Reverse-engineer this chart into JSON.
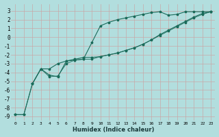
{
  "xlabel": "Humidex (Indice chaleur)",
  "background_color": "#b2dede",
  "grid_color": "#c8a8a8",
  "line_color": "#1a6b5a",
  "xlim": [
    -0.5,
    23.5
  ],
  "ylim": [
    -9.5,
    3.8
  ],
  "yticks": [
    3,
    2,
    1,
    0,
    -1,
    -2,
    -3,
    -4,
    -5,
    -6,
    -7,
    -8,
    -9
  ],
  "xticks": [
    0,
    1,
    2,
    3,
    4,
    5,
    6,
    7,
    8,
    9,
    10,
    11,
    12,
    13,
    14,
    15,
    16,
    17,
    18,
    19,
    20,
    21,
    22,
    23
  ],
  "line1_x": [
    0,
    1,
    2,
    3,
    4,
    5,
    6,
    7,
    8,
    9,
    10,
    11,
    12,
    13,
    14,
    15,
    16,
    17,
    18,
    19,
    20,
    21,
    22,
    23
  ],
  "line1_y": [
    -8.8,
    -8.8,
    -5.3,
    -3.6,
    -4.3,
    -4.5,
    -2.7,
    -2.6,
    -2.5,
    -0.6,
    1.3,
    1.7,
    2.0,
    2.2,
    2.4,
    2.6,
    2.8,
    2.9,
    2.5,
    2.6,
    2.9,
    2.9,
    2.9,
    2.9
  ],
  "line2_x": [
    2,
    3,
    4,
    5,
    6,
    7,
    8,
    9,
    10,
    11,
    12,
    13,
    14,
    15,
    16,
    17,
    18,
    19,
    20,
    21,
    22,
    23
  ],
  "line2_y": [
    -5.3,
    -3.6,
    -3.6,
    -3.0,
    -2.7,
    -2.5,
    -2.3,
    -2.3,
    -2.2,
    -2.0,
    -1.8,
    -1.5,
    -1.2,
    -0.8,
    -0.3,
    0.3,
    0.8,
    1.3,
    1.8,
    2.3,
    2.7,
    2.9
  ],
  "line3_x": [
    0,
    1,
    2,
    3,
    4,
    5,
    6,
    7,
    8,
    9,
    10,
    11,
    12,
    13,
    14,
    15,
    16,
    17,
    18,
    19,
    20,
    21,
    22,
    23
  ],
  "line3_y": [
    -8.8,
    -8.8,
    -5.3,
    -3.6,
    -4.5,
    -4.4,
    -3.0,
    -2.6,
    -2.5,
    -2.5,
    -2.2,
    -2.0,
    -1.8,
    -1.5,
    -1.2,
    -0.8,
    -0.3,
    0.2,
    0.7,
    1.2,
    1.7,
    2.2,
    2.6,
    2.9
  ]
}
